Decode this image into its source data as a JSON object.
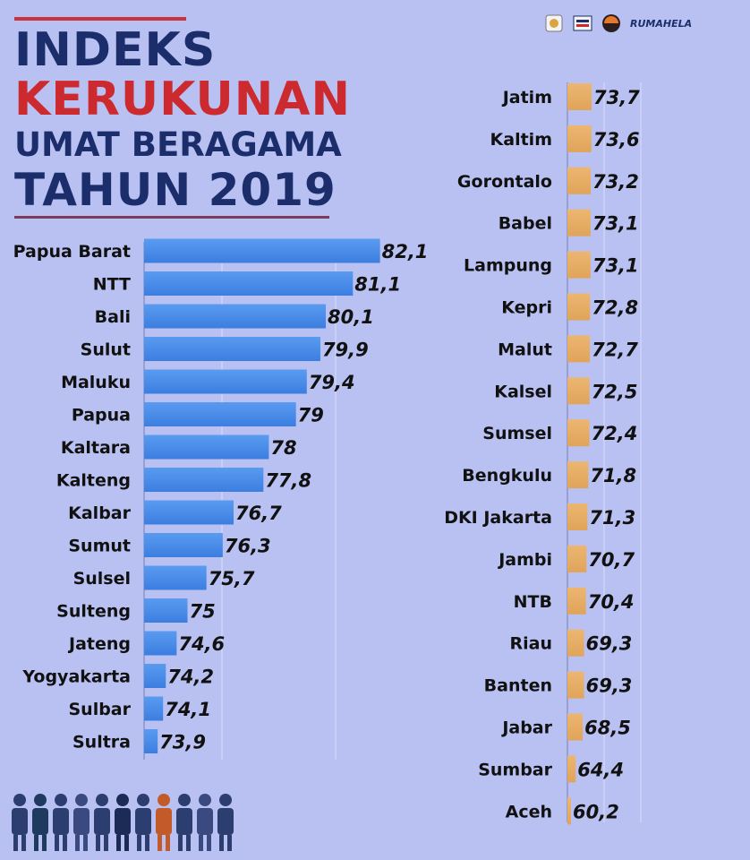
{
  "title": {
    "line1": "INDEKS",
    "line2": "KERUKUNAN",
    "line3": "UMAT BERAGAMA",
    "line4": "TAHUN 2019"
  },
  "logo_text": "RUMAHELA",
  "colors": {
    "background": "#b9c1f2",
    "navy": "#1c2d6b",
    "red": "#cc2a2e",
    "left_bar": "#3b7ee0",
    "right_bar": "#e0a45a"
  },
  "chart_data": [
    {
      "type": "bar",
      "orientation": "horizontal",
      "categories": [
        "Papua Barat",
        "NTT",
        "Bali",
        "Sulut",
        "Maluku",
        "Papua",
        "Kaltara",
        "Kalteng",
        "Kalbar",
        "Sumut",
        "Sulsel",
        "Sulteng",
        "Jateng",
        "Yogyakarta",
        "Sulbar",
        "Sultra"
      ],
      "values": [
        82.1,
        81.1,
        80.1,
        79.9,
        79.4,
        79,
        78,
        77.8,
        76.7,
        76.3,
        75.7,
        75,
        74.6,
        74.2,
        74.1,
        73.9
      ],
      "labels": [
        "82,1",
        "81,1",
        "80,1",
        "79,9",
        "79,4",
        "79",
        "78",
        "77,8",
        "76,7",
        "76,3",
        "75,7",
        "75",
        "74,6",
        "74,2",
        "74,1",
        "73,9"
      ],
      "grid": true
    },
    {
      "type": "bar",
      "orientation": "horizontal",
      "categories": [
        "Jatim",
        "Kaltim",
        "Gorontalo",
        "Babel",
        "Lampung",
        "Kepri",
        "Malut",
        "Kalsel",
        "Sumsel",
        "Bengkulu",
        "DKI Jakarta",
        "Jambi",
        "NTB",
        "Riau",
        "Banten",
        "Jabar",
        "Sumbar",
        "Aceh"
      ],
      "values": [
        73.7,
        73.6,
        73.2,
        73.1,
        73.1,
        72.8,
        72.7,
        72.5,
        72.4,
        71.8,
        71.3,
        70.7,
        70.4,
        69.3,
        69.3,
        68.5,
        64.4,
        60.2
      ],
      "labels": [
        "73,7",
        "73,6",
        "73,2",
        "73,1",
        "73,1",
        "72,8",
        "72,7",
        "72,5",
        "72,4",
        "71,8",
        "71,3",
        "70,7",
        "70,4",
        "69,3",
        "69,3",
        "68,5",
        "64,4",
        "60,2"
      ],
      "grid": true
    }
  ]
}
